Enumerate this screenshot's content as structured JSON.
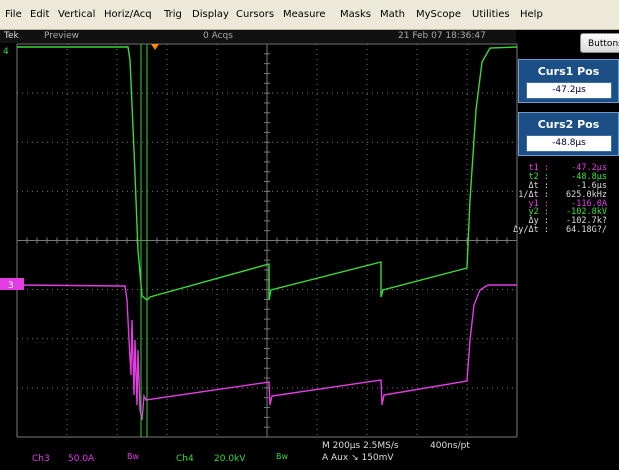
{
  "menu": [
    "File",
    "Edit",
    "Vertical",
    "Horiz/Acq",
    "Trig",
    "Display",
    "Cursors",
    "Measure",
    "Masks",
    "Math",
    "MyScope",
    "Utilities",
    "Help"
  ],
  "status": {
    "brand": "Tek",
    "mode": "Preview",
    "acqs": "0 Acqs",
    "datetime": "21 Feb 07 18:36:47"
  },
  "buttons_label": "Buttons",
  "curs1": {
    "title": "Curs1 Pos",
    "value": "-47.2µs"
  },
  "curs2": {
    "title": "Curs2 Pos",
    "value": "-48.8µs"
  },
  "readout": [
    {
      "label": "t1 :",
      "value": "-47.2µs",
      "color": "#e040e0"
    },
    {
      "label": "t2 :",
      "value": "-48.8µs",
      "color": "#40e040"
    },
    {
      "label": "Δt :",
      "value": "-1.6µs",
      "color": "#dddddd"
    },
    {
      "label": "1/Δt :",
      "value": "625.0kHz",
      "color": "#dddddd"
    },
    {
      "label": "y1 :",
      "value": "-116.0A",
      "color": "#e040e0"
    },
    {
      "label": "y2 :",
      "value": "-102.8kV",
      "color": "#40e040"
    },
    {
      "label": "Δy :",
      "value": "-102.7k?",
      "color": "#dddddd"
    },
    {
      "label": "Δy/Δt :",
      "value": "64.18G?/",
      "color": "#dddddd"
    }
  ],
  "bottom": {
    "ch3": "Ch3",
    "ch3_scale": "50.0A",
    "bw1": "Bw",
    "ch4": "Ch4",
    "ch4_scale": "20.0kV",
    "bw2": "Bw",
    "timebase": "M 200µs 2.5MS/s",
    "resolution": "400ns/pt",
    "trigger": "A  Aux  ↘  150mV"
  },
  "ch_marker": {
    "ch4": "4",
    "ch3": "3"
  },
  "colors": {
    "ch3": "#e23ce2",
    "ch4": "#3cd83c",
    "grid": "#7a7a7a",
    "panel": "#1b4f86"
  }
}
